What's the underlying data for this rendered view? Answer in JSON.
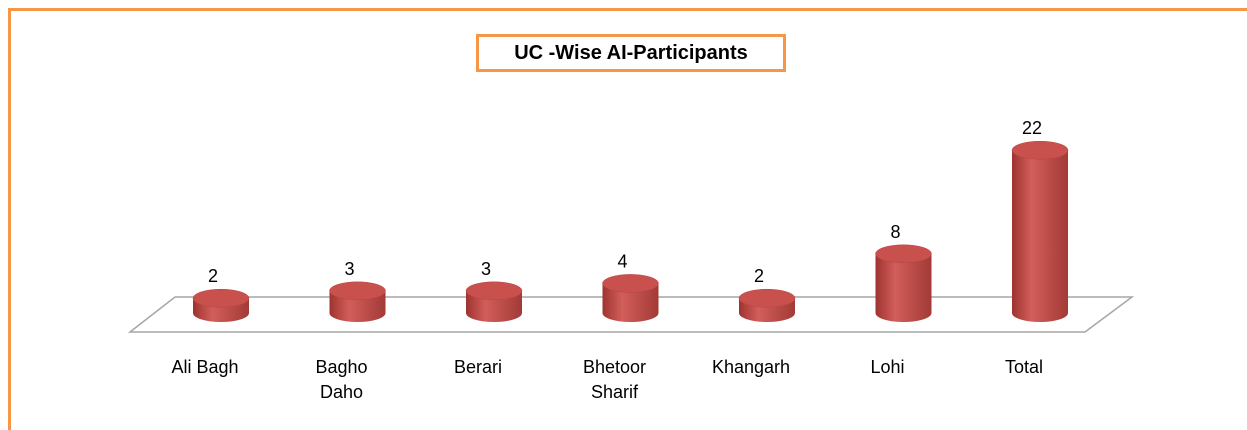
{
  "chart_data": {
    "type": "bar3d",
    "title": "UC -Wise AI-Participants",
    "categories": [
      "Ali Bagh",
      "Bagho Daho",
      "Berari",
      "Bhetoor Sharif",
      "Khangarh",
      "Lohi",
      "Total"
    ],
    "values": [
      2,
      3,
      3,
      4,
      2,
      8,
      22
    ],
    "color": "#c0504d"
  }
}
